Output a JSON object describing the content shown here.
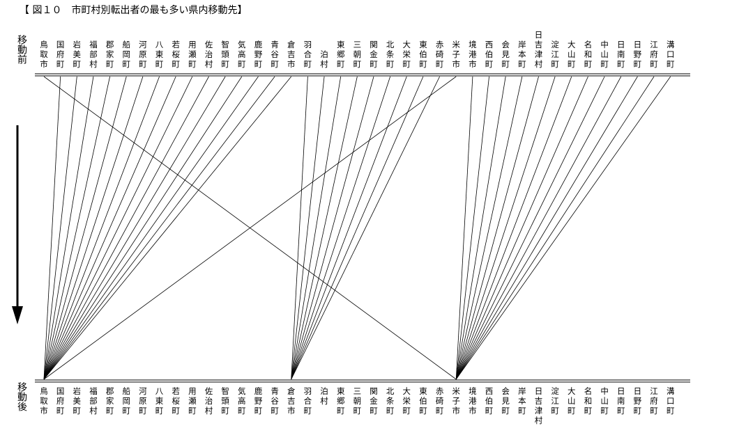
{
  "title": "【 図１０　市町村別転出者の最も多い県内移動先】",
  "axis_before_label": "移動前",
  "axis_after_label": "移動後",
  "municipalities": [
    "鳥取市",
    "国府町",
    "岩美町",
    "福部村",
    "郡家町",
    "船岡町",
    "河原町",
    "八東町",
    "若桜町",
    "用瀬町",
    "佐治村",
    "智頭町",
    "気高町",
    "鹿野町",
    "青谷町",
    "倉吉市",
    "羽合町",
    "泊村",
    "東郷町",
    "三朝町",
    "関金町",
    "北条町",
    "大栄町",
    "東伯町",
    "赤碕町",
    "米子市",
    "境港市",
    "西伯町",
    "会見町",
    "岸本町",
    "日吉津村",
    "淀江町",
    "大山町",
    "名和町",
    "中山町",
    "日南町",
    "日野町",
    "江府町",
    "溝口町"
  ],
  "moves": [
    [
      "鳥取市",
      "米子市"
    ],
    [
      "国府町",
      "鳥取市"
    ],
    [
      "岩美町",
      "鳥取市"
    ],
    [
      "福部村",
      "鳥取市"
    ],
    [
      "郡家町",
      "鳥取市"
    ],
    [
      "船岡町",
      "鳥取市"
    ],
    [
      "河原町",
      "鳥取市"
    ],
    [
      "八東町",
      "鳥取市"
    ],
    [
      "若桜町",
      "鳥取市"
    ],
    [
      "用瀬町",
      "鳥取市"
    ],
    [
      "佐治村",
      "鳥取市"
    ],
    [
      "智頭町",
      "鳥取市"
    ],
    [
      "気高町",
      "鳥取市"
    ],
    [
      "鹿野町",
      "鳥取市"
    ],
    [
      "青谷町",
      "鳥取市"
    ],
    [
      "倉吉市",
      "鳥取市"
    ],
    [
      "羽合町",
      "倉吉市"
    ],
    [
      "泊村",
      "倉吉市"
    ],
    [
      "東郷町",
      "倉吉市"
    ],
    [
      "三朝町",
      "倉吉市"
    ],
    [
      "関金町",
      "倉吉市"
    ],
    [
      "北条町",
      "倉吉市"
    ],
    [
      "大栄町",
      "倉吉市"
    ],
    [
      "東伯町",
      "倉吉市"
    ],
    [
      "赤碕町",
      "倉吉市"
    ],
    [
      "米子市",
      "鳥取市"
    ],
    [
      "境港市",
      "米子市"
    ],
    [
      "西伯町",
      "米子市"
    ],
    [
      "会見町",
      "米子市"
    ],
    [
      "岸本町",
      "米子市"
    ],
    [
      "日吉津村",
      "米子市"
    ],
    [
      "淀江町",
      "米子市"
    ],
    [
      "大山町",
      "米子市"
    ],
    [
      "名和町",
      "米子市"
    ],
    [
      "中山町",
      "米子市"
    ],
    [
      "日南町",
      "米子市"
    ],
    [
      "日野町",
      "米子市"
    ],
    [
      "江府町",
      "米子市"
    ],
    [
      "溝口町",
      "米子市"
    ]
  ]
}
